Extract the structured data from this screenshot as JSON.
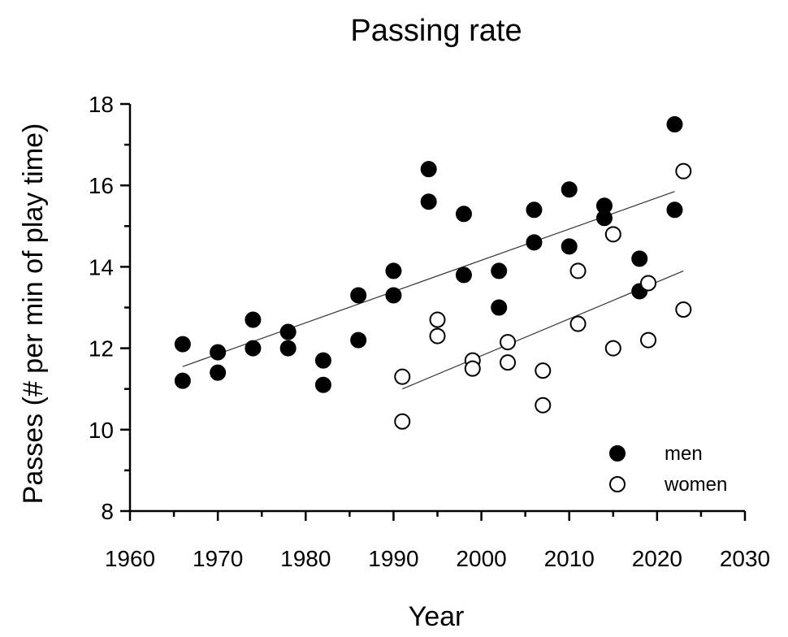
{
  "chart_data": {
    "type": "scatter",
    "title": "Passing rate",
    "xlabel": "Year",
    "ylabel": "Passes (# per min of play time)",
    "xlim": [
      1960,
      2030
    ],
    "ylim": [
      8,
      18
    ],
    "xticks": [
      "1960",
      "1970",
      "1980",
      "1990",
      "2000",
      "2010",
      "2020",
      "2030"
    ],
    "yticks": [
      "8",
      "10",
      "12",
      "14",
      "16",
      "18"
    ],
    "grid": false,
    "legend_position": "bottom-right",
    "series": [
      {
        "name": "men",
        "marker": "filled-circle",
        "color": "#000000",
        "x": [
          1966,
          1966,
          1970,
          1970,
          1974,
          1974,
          1978,
          1978,
          1982,
          1982,
          1986,
          1986,
          1990,
          1990,
          1994,
          1994,
          1998,
          1998,
          2002,
          2002,
          2006,
          2006,
          2010,
          2010,
          2014,
          2014,
          2018,
          2018,
          2022,
          2022
        ],
        "y": [
          12.1,
          11.2,
          11.9,
          11.4,
          12.7,
          12.0,
          12.4,
          12.0,
          11.7,
          11.1,
          13.3,
          12.2,
          13.9,
          13.3,
          16.4,
          15.6,
          15.3,
          13.8,
          13.9,
          13.0,
          15.4,
          14.6,
          15.9,
          14.5,
          15.5,
          15.2,
          14.2,
          13.4,
          17.5,
          15.4
        ],
        "trend": {
          "x": [
            1966,
            2022
          ],
          "y": [
            11.55,
            15.85
          ]
        }
      },
      {
        "name": "women",
        "marker": "open-circle",
        "color": "#000000",
        "x": [
          1991,
          1991,
          1995,
          1995,
          1999,
          1999,
          2003,
          2003,
          2007,
          2007,
          2011,
          2011,
          2015,
          2015,
          2019,
          2019,
          2023,
          2023
        ],
        "y": [
          11.3,
          10.2,
          12.7,
          12.3,
          11.7,
          11.5,
          12.15,
          11.65,
          11.45,
          10.6,
          13.9,
          12.6,
          14.8,
          12.0,
          13.6,
          12.2,
          16.35,
          12.95
        ],
        "trend": {
          "x": [
            1991,
            2023
          ],
          "y": [
            11.0,
            13.9
          ]
        }
      }
    ]
  }
}
